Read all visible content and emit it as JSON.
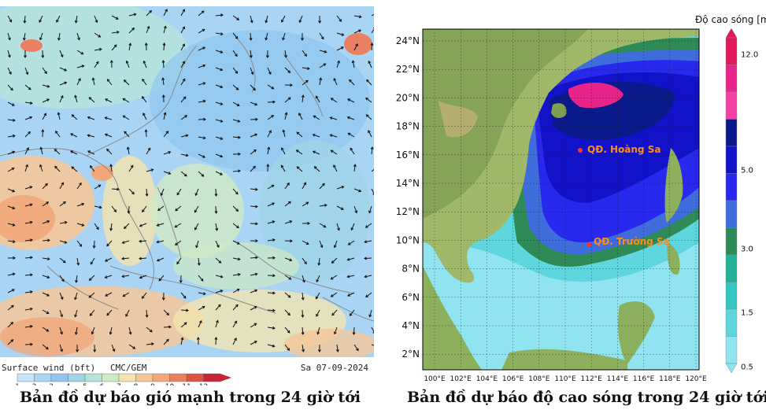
{
  "wind_map": {
    "footer_left": "Surface wind (bft)",
    "footer_model": "CMC/GEM",
    "footer_date": "Sa 07-09-2024",
    "scale_ticks": [
      "1",
      "2",
      "3",
      "4",
      "5",
      "6",
      "7",
      "8",
      "9",
      "10",
      "11",
      "12"
    ],
    "scale_colors": [
      "#c9e3f7",
      "#a9d4f3",
      "#8fc6ef",
      "#9fd3e6",
      "#b6e3d9",
      "#cfe9c3",
      "#f2e3b0",
      "#f4c79a",
      "#f1a77a",
      "#e98062",
      "#dc5346",
      "#c52535"
    ],
    "caption": "Bản đồ dự báo gió mạnh trong 24 giờ tới"
  },
  "wave_map": {
    "legend_title": "Độ cao sóng [m",
    "legend_levels": [
      "12.0",
      "5.0",
      "3.0",
      "1.5",
      "0.5"
    ],
    "legend_colors": [
      "#e0195c",
      "#e8238a",
      "#f43fa5",
      "#0a1a8a",
      "#1212c8",
      "#2828ee",
      "#3f6ddc",
      "#2e8b57",
      "#23b09a",
      "#34c6c0",
      "#5fd6de",
      "#8fe4f0"
    ],
    "lat_labels": [
      "24°N",
      "22°N",
      "20°N",
      "18°N",
      "16°N",
      "14°N",
      "12°N",
      "10°N",
      "8°N",
      "6°N",
      "4°N",
      "2°N"
    ],
    "lon_labels": [
      "100°E",
      "102°E",
      "104°E",
      "106°E",
      "108°E",
      "110°E",
      "112°E",
      "114°E",
      "116°E",
      "118°E",
      "120°E"
    ],
    "places": [
      {
        "name": "QĐ. Hoàng Sa"
      },
      {
        "name": "QĐ. Trường Sa"
      }
    ],
    "caption": "Bản đồ dự báo độ cao sóng trong 24 giờ tới"
  }
}
